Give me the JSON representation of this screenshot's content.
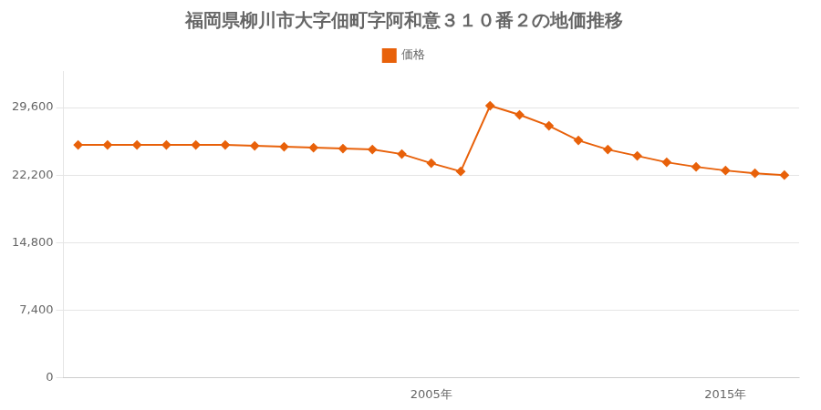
{
  "chart_data": {
    "type": "line",
    "title": "福岡県柳川市大字佃町字阿和意３１０番２の地価推移",
    "x": [
      1993,
      1994,
      1995,
      1996,
      1997,
      1998,
      1999,
      2000,
      2001,
      2002,
      2003,
      2004,
      2005,
      2006,
      2007,
      2008,
      2009,
      2010,
      2011,
      2012,
      2013,
      2014,
      2015,
      2016,
      2017
    ],
    "series": [
      {
        "name": "価格",
        "color": "#e8610a",
        "marker": "diamond",
        "line_style": "solid",
        "values": [
          25500,
          25500,
          25500,
          25500,
          25500,
          25500,
          25400,
          25300,
          25200,
          25100,
          25000,
          24500,
          23500,
          22600,
          29800,
          28800,
          27600,
          26000,
          25000,
          24300,
          23600,
          23100,
          22700,
          22400,
          22200
        ]
      }
    ],
    "xlim": [
      1992.5,
      2017.5
    ],
    "xticks": [
      {
        "value": 2005,
        "label": "2005年"
      },
      {
        "value": 2015,
        "label": "2015年"
      }
    ],
    "ylim": [
      0,
      33600
    ],
    "yticks": [
      0,
      {
        "value": 7400,
        "label": "7,400"
      },
      {
        "value": 14800,
        "label": "14,800"
      },
      {
        "value": 22200,
        "label": "22,200"
      },
      {
        "value": 29600,
        "label": "29,600"
      }
    ],
    "grid": "y",
    "legend": "top"
  }
}
